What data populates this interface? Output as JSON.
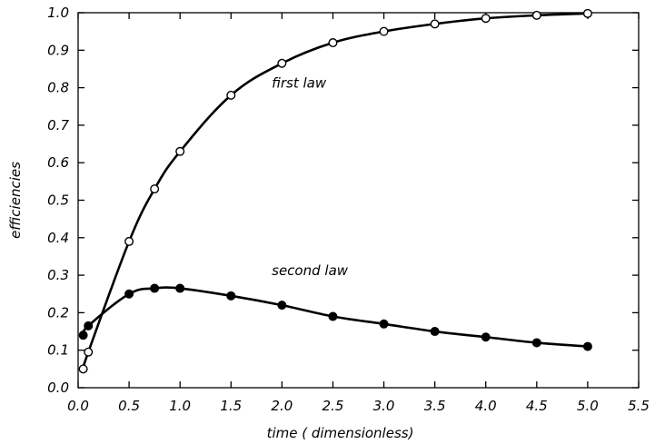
{
  "chart_data": {
    "type": "line",
    "xlabel": "time ( dimensionless)",
    "ylabel": "efficiencies",
    "xlim": [
      0.0,
      5.5
    ],
    "ylim": [
      0.0,
      1.0
    ],
    "xticks": [
      "0.0",
      "0.5",
      "1.0",
      "1.5",
      "2.0",
      "2.5",
      "3.0",
      "3.5",
      "4.0",
      "4.5",
      "5.0",
      "5.5"
    ],
    "yticks": [
      "0.0",
      "0.1",
      "0.2",
      "0.3",
      "0.4",
      "0.5",
      "0.6",
      "0.7",
      "0.8",
      "0.9",
      "1.0"
    ],
    "grid": false,
    "legend": "none",
    "series": [
      {
        "name": "first law",
        "marker": "open-circle",
        "color": "#000000",
        "x": [
          0.05,
          0.1,
          0.5,
          0.75,
          1.0,
          1.5,
          2.0,
          2.5,
          3.0,
          3.5,
          4.0,
          4.5,
          5.0
        ],
        "y": [
          0.05,
          0.095,
          0.39,
          0.53,
          0.63,
          0.78,
          0.865,
          0.92,
          0.95,
          0.97,
          0.985,
          0.993,
          0.998
        ]
      },
      {
        "name": "second law",
        "marker": "filled-circle",
        "color": "#000000",
        "x": [
          0.05,
          0.1,
          0.5,
          0.75,
          1.0,
          1.5,
          2.0,
          2.5,
          3.0,
          3.5,
          4.0,
          4.5,
          5.0
        ],
        "y": [
          0.14,
          0.165,
          0.25,
          0.265,
          0.265,
          0.245,
          0.22,
          0.19,
          0.17,
          0.15,
          0.135,
          0.12,
          0.11
        ]
      }
    ],
    "annotations": [
      "first law",
      "second law"
    ]
  }
}
